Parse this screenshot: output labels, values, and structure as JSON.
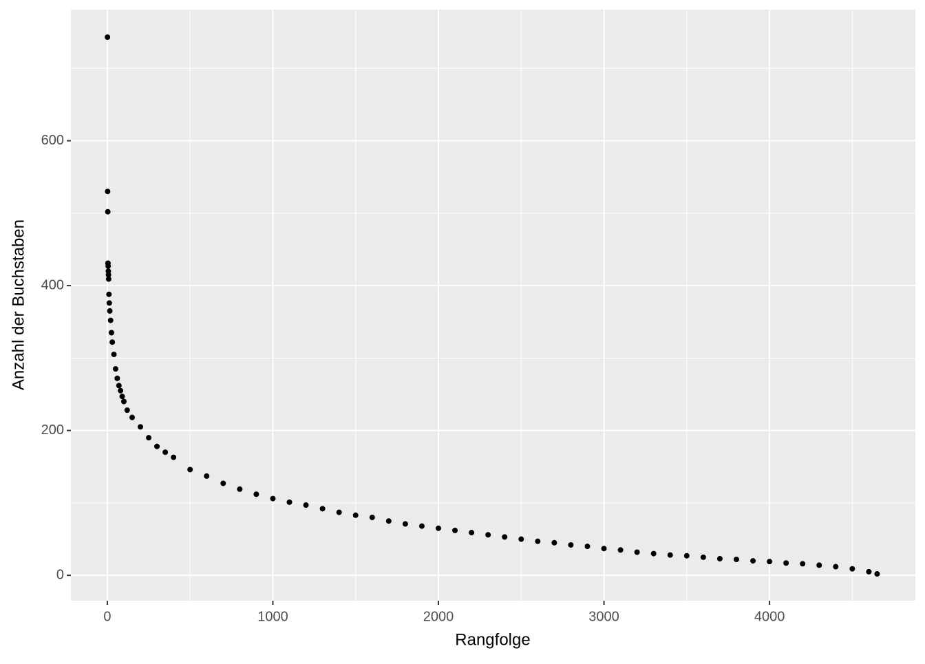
{
  "chart_data": {
    "type": "scatter",
    "xlabel": "Rangfolge",
    "ylabel": "Anzahl der Buchstaben",
    "x": [
      1,
      2,
      3,
      4,
      5,
      6,
      7,
      8,
      10,
      12,
      15,
      20,
      25,
      30,
      40,
      50,
      60,
      70,
      80,
      90,
      100,
      120,
      150,
      200,
      250,
      300,
      350,
      400,
      500,
      600,
      700,
      800,
      900,
      1000,
      1100,
      1200,
      1300,
      1400,
      1500,
      1600,
      1700,
      1800,
      1900,
      2000,
      2100,
      2200,
      2300,
      2400,
      2500,
      2600,
      2700,
      2800,
      2900,
      3000,
      3100,
      3200,
      3300,
      3400,
      3500,
      3600,
      3700,
      3800,
      3900,
      4000,
      4100,
      4200,
      4300,
      4400,
      4500,
      4600,
      4650
    ],
    "values": [
      743,
      530,
      502,
      431,
      427,
      420,
      415,
      409,
      388,
      376,
      365,
      352,
      335,
      322,
      305,
      285,
      272,
      262,
      255,
      247,
      240,
      228,
      218,
      205,
      190,
      178,
      170,
      163,
      146,
      137,
      127,
      119,
      112,
      106,
      101,
      97,
      92,
      87,
      83,
      80,
      75,
      71,
      68,
      65,
      62,
      59,
      56,
      53,
      50,
      47,
      45,
      42,
      40,
      37,
      35,
      32,
      30,
      28,
      27,
      25,
      23,
      22,
      20,
      19,
      17,
      16,
      14,
      12,
      9,
      5,
      2
    ],
    "color": "#000000",
    "xlim": [
      -220,
      4881
    ],
    "ylim": [
      -35,
      781
    ],
    "xticks": [
      0,
      1000,
      2000,
      3000,
      4000
    ],
    "yticks": [
      0,
      200,
      400,
      600
    ],
    "xminor": [
      500,
      1500,
      2500,
      3500,
      4500
    ],
    "yminor": [
      100,
      300,
      500,
      700
    ],
    "grid": true
  }
}
